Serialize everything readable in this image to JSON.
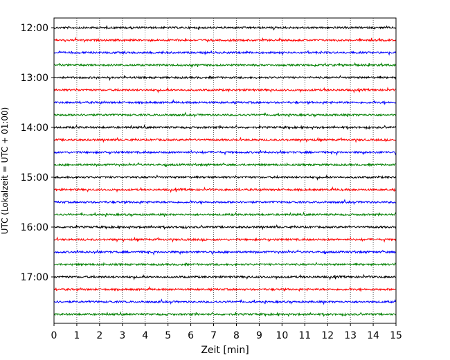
{
  "chart_data": {
    "type": "line",
    "title": "",
    "xlabel": "Zeit  [min]",
    "ylabel": "UTC (Lokalzeit = UTC + 01:00)",
    "xlim": [
      0,
      15
    ],
    "x_ticks": [
      "0",
      "1",
      "2",
      "3",
      "4",
      "5",
      "6",
      "7",
      "8",
      "9",
      "10",
      "11",
      "12",
      "13",
      "14",
      "15"
    ],
    "y_ticks": [
      "12:00",
      "13:00",
      "14:00",
      "15:00",
      "16:00",
      "17:00"
    ],
    "grid": "vertical dotted lines at every minute",
    "trace_interval_minutes": 15,
    "trace_start_times": [
      "12:00",
      "12:15",
      "12:30",
      "12:45",
      "13:00",
      "13:15",
      "13:30",
      "13:45",
      "14:00",
      "14:15",
      "14:30",
      "14:45",
      "15:00",
      "15:15",
      "15:30",
      "15:45",
      "16:00",
      "16:15",
      "16:30",
      "16:45",
      "17:00",
      "17:15",
      "17:30",
      "17:45"
    ],
    "trace_color_cycle": [
      "#000000",
      "#ff0000",
      "#0000ff",
      "#008000"
    ]
  }
}
